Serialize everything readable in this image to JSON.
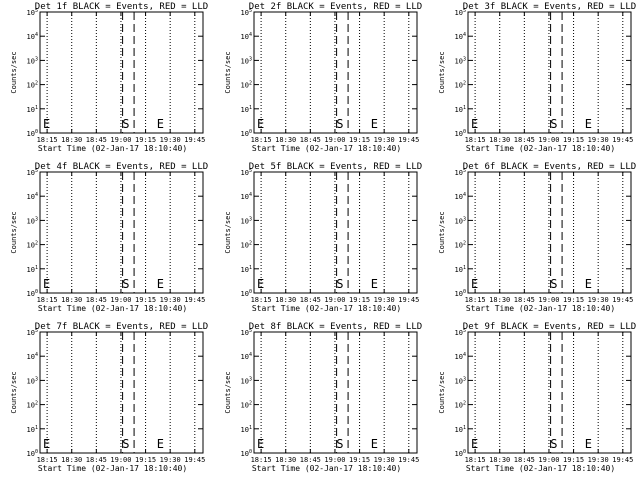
{
  "chart_data": [
    {
      "type": "line",
      "title": "Det 1f BLACK = Events, RED = LLD",
      "xlabel": "Start Time (02-Jan-17 18:10:40)",
      "ylabel": "Counts/sec",
      "x_ticks": [
        "18:15",
        "18:30",
        "18:45",
        "19:00",
        "19:15",
        "19:30",
        "19:45"
      ],
      "y_ticks": [
        "10^0",
        "10^1",
        "10^2",
        "10^3",
        "10^4",
        "10^5"
      ],
      "y_log": true,
      "series": [],
      "markers": [
        {
          "label": "E",
          "x": "18:10"
        },
        {
          "label": "S",
          "x": "19:03"
        },
        {
          "label": "E",
          "x": "19:24"
        }
      ]
    },
    {
      "type": "line",
      "title": "Det 2f BLACK = Events, RED = LLD",
      "xlabel": "Start Time (02-Jan-17 18:10:40)",
      "ylabel": "Counts/sec",
      "x_ticks": [
        "18:15",
        "18:30",
        "18:45",
        "19:00",
        "19:15",
        "19:30",
        "19:45"
      ],
      "y_ticks": [
        "10^0",
        "10^1",
        "10^2",
        "10^3",
        "10^4",
        "10^5"
      ],
      "y_log": true,
      "series": [],
      "markers": [
        {
          "label": "E",
          "x": "18:10"
        },
        {
          "label": "S",
          "x": "19:03"
        },
        {
          "label": "E",
          "x": "19:24"
        }
      ]
    },
    {
      "type": "line",
      "title": "Det 3f BLACK = Events, RED = LLD",
      "xlabel": "Start Time (02-Jan-17 18:10:40)",
      "ylabel": "Counts/sec",
      "x_ticks": [
        "18:15",
        "18:30",
        "18:45",
        "19:00",
        "19:15",
        "19:30",
        "19:45"
      ],
      "y_ticks": [
        "10^0",
        "10^1",
        "10^2",
        "10^3",
        "10^4",
        "10^5"
      ],
      "y_log": true,
      "series": [],
      "markers": [
        {
          "label": "E",
          "x": "18:10"
        },
        {
          "label": "S",
          "x": "19:03"
        },
        {
          "label": "E",
          "x": "19:24"
        }
      ]
    },
    {
      "type": "line",
      "title": "Det 4f BLACK = Events, RED = LLD",
      "xlabel": "Start Time (02-Jan-17 18:10:40)",
      "ylabel": "Counts/sec",
      "x_ticks": [
        "18:15",
        "18:30",
        "18:45",
        "19:00",
        "19:15",
        "19:30",
        "19:45"
      ],
      "y_ticks": [
        "10^0",
        "10^1",
        "10^2",
        "10^3",
        "10^4",
        "10^5"
      ],
      "y_log": true,
      "series": [],
      "markers": [
        {
          "label": "E",
          "x": "18:10"
        },
        {
          "label": "S",
          "x": "19:03"
        },
        {
          "label": "E",
          "x": "19:24"
        }
      ]
    },
    {
      "type": "line",
      "title": "Det 5f BLACK = Events, RED = LLD",
      "xlabel": "Start Time (02-Jan-17 18:10:40)",
      "ylabel": "Counts/sec",
      "x_ticks": [
        "18:15",
        "18:30",
        "18:45",
        "19:00",
        "19:15",
        "19:30",
        "19:45"
      ],
      "y_ticks": [
        "10^0",
        "10^1",
        "10^2",
        "10^3",
        "10^4",
        "10^5"
      ],
      "y_log": true,
      "series": [],
      "markers": [
        {
          "label": "E",
          "x": "18:10"
        },
        {
          "label": "S",
          "x": "19:03"
        },
        {
          "label": "E",
          "x": "19:24"
        }
      ]
    },
    {
      "type": "line",
      "title": "Det 6f BLACK = Events, RED = LLD",
      "xlabel": "Start Time (02-Jan-17 18:10:40)",
      "ylabel": "Counts/sec",
      "x_ticks": [
        "18:15",
        "18:30",
        "18:45",
        "19:00",
        "19:15",
        "19:30",
        "19:45"
      ],
      "y_ticks": [
        "10^0",
        "10^1",
        "10^2",
        "10^3",
        "10^4",
        "10^5"
      ],
      "y_log": true,
      "series": [],
      "markers": [
        {
          "label": "E",
          "x": "18:10"
        },
        {
          "label": "S",
          "x": "19:03"
        },
        {
          "label": "E",
          "x": "19:24"
        }
      ]
    },
    {
      "type": "line",
      "title": "Det 7f BLACK = Events, RED = LLD",
      "xlabel": "Start Time (02-Jan-17 18:10:40)",
      "ylabel": "Counts/sec",
      "x_ticks": [
        "18:15",
        "18:30",
        "18:45",
        "19:00",
        "19:15",
        "19:30",
        "19:45"
      ],
      "y_ticks": [
        "10^0",
        "10^1",
        "10^2",
        "10^3",
        "10^4",
        "10^5"
      ],
      "y_log": true,
      "series": [],
      "markers": [
        {
          "label": "E",
          "x": "18:10"
        },
        {
          "label": "S",
          "x": "19:03"
        },
        {
          "label": "E",
          "x": "19:24"
        }
      ]
    },
    {
      "type": "line",
      "title": "Det 8f BLACK = Events, RED = LLD",
      "xlabel": "Start Time (02-Jan-17 18:10:40)",
      "ylabel": "Counts/sec",
      "x_ticks": [
        "18:15",
        "18:30",
        "18:45",
        "19:00",
        "19:15",
        "19:30",
        "19:45"
      ],
      "y_ticks": [
        "10^0",
        "10^1",
        "10^2",
        "10^3",
        "10^4",
        "10^5"
      ],
      "y_log": true,
      "series": [],
      "markers": [
        {
          "label": "E",
          "x": "18:10"
        },
        {
          "label": "S",
          "x": "19:03"
        },
        {
          "label": "E",
          "x": "19:24"
        }
      ]
    },
    {
      "type": "line",
      "title": "Det 9f BLACK = Events, RED = LLD",
      "xlabel": "Start Time (02-Jan-17 18:10:40)",
      "ylabel": "Counts/sec",
      "x_ticks": [
        "18:15",
        "18:30",
        "18:45",
        "19:00",
        "19:15",
        "19:30",
        "19:45"
      ],
      "y_ticks": [
        "10^0",
        "10^1",
        "10^2",
        "10^3",
        "10^4",
        "10^5"
      ],
      "y_log": true,
      "series": [],
      "markers": [
        {
          "label": "E",
          "x": "18:10"
        },
        {
          "label": "S",
          "x": "19:03"
        },
        {
          "label": "E",
          "x": "19:24"
        }
      ]
    }
  ],
  "colors": {
    "background": "#ffffff",
    "foreground": "#000000"
  }
}
